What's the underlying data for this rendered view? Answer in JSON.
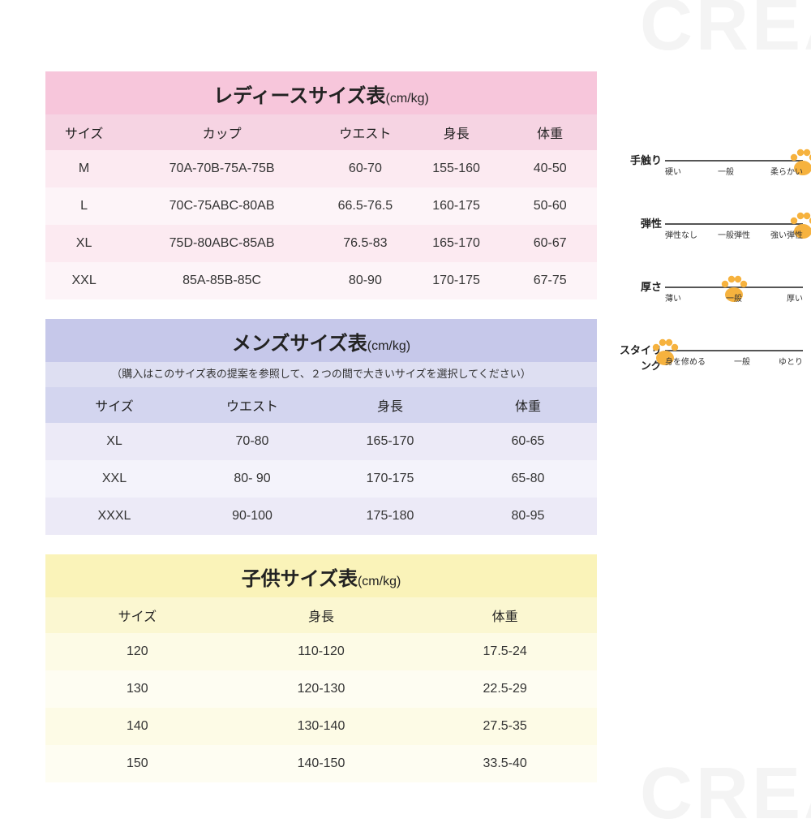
{
  "ladies": {
    "title": "レディースサイズ表",
    "unit": "(cm/kg)",
    "columns": [
      "サイズ",
      "カップ",
      "ウエスト",
      "身長",
      "体重"
    ],
    "rows": [
      [
        "M",
        "70A-70B-75A-75B",
        "60-70",
        "155-160",
        "40-50"
      ],
      [
        "L",
        "70C-75ABC-80AB",
        "66.5-76.5",
        "160-175",
        "50-60"
      ],
      [
        "XL",
        "75D-80ABC-85AB",
        "76.5-83",
        "165-170",
        "60-67"
      ],
      [
        "XXL",
        "85A-85B-85C",
        "80-90",
        "170-175",
        "67-75"
      ]
    ],
    "col_widths": [
      "14%",
      "36%",
      "16%",
      "17%",
      "17%"
    ],
    "colors": {
      "title": "#f7c6db",
      "head": "#f6d4e3",
      "odd": "#fceaf1",
      "even": "#fdf4f8"
    }
  },
  "mens": {
    "title": "メンズサイズ表",
    "unit": "(cm/kg)",
    "note": "（購入はこのサイズ表の提案を参照して、２つの間で大きいサイズを選択してください）",
    "columns": [
      "サイズ",
      "ウエスト",
      "身長",
      "体重"
    ],
    "rows": [
      [
        "XL",
        "70-80",
        "165-170",
        "60-65"
      ],
      [
        "XXL",
        "80- 90",
        "170-175",
        "65-80"
      ],
      [
        "XXXL",
        "90-100",
        "175-180",
        "80-95"
      ]
    ],
    "col_widths": [
      "25%",
      "25%",
      "25%",
      "25%"
    ],
    "colors": {
      "title": "#c6c8ea",
      "note": "#dedff2",
      "head": "#d3d5ef",
      "odd": "#eceaf7",
      "even": "#f4f3fb"
    }
  },
  "kids": {
    "title": "子供サイズ表",
    "unit": "(cm/kg)",
    "columns": [
      "サイズ",
      "身長",
      "体重"
    ],
    "rows": [
      [
        "120",
        "110-120",
        "17.5-24"
      ],
      [
        "130",
        "120-130",
        "22.5-29"
      ],
      [
        "140",
        "130-140",
        "27.5-35"
      ],
      [
        "150",
        "140-150",
        "33.5-40"
      ]
    ],
    "col_widths": [
      "33.3%",
      "33.3%",
      "33.3%"
    ],
    "colors": {
      "title": "#faf3b9",
      "head": "#fbf7d1",
      "odd": "#fdfbe6",
      "even": "#fefdf2"
    }
  },
  "ratings": [
    {
      "label": "手触り",
      "ticks": [
        "硬い",
        "一般",
        "柔らかい"
      ],
      "value": 1.0
    },
    {
      "label": "弾性",
      "ticks": [
        "弾性なし",
        "一般弾性",
        "強い弾性"
      ],
      "value": 1.0
    },
    {
      "label": "厚さ",
      "ticks": [
        "薄い",
        "一般",
        "厚い"
      ],
      "value": 0.5
    },
    {
      "label": "スタイリング",
      "ticks": [
        "身を修める",
        "一般",
        "ゆとり"
      ],
      "value": 0.0
    }
  ],
  "paw_color": "#f6b23e",
  "watermark": "CREA"
}
